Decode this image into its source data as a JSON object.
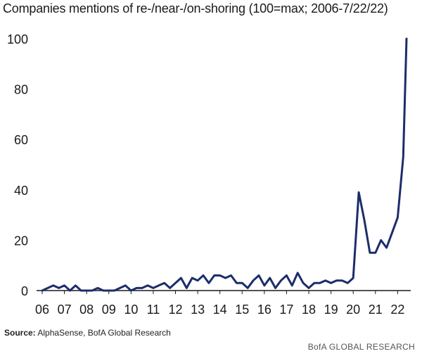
{
  "chart_data": {
    "type": "line",
    "title": "Companies mentions of re-/near-/on-shoring (100=max; 2006-7/22/22)",
    "xlabel": "",
    "ylabel": "",
    "ylim": [
      0,
      100
    ],
    "yticks": [
      0,
      20,
      40,
      60,
      80,
      100
    ],
    "categories": [
      "06",
      "07",
      "08",
      "09",
      "10",
      "11",
      "12",
      "13",
      "14",
      "15",
      "16",
      "17",
      "18",
      "19",
      "20",
      "21",
      "22"
    ],
    "grid": false,
    "line_color": "#1c2d6b",
    "series": [
      {
        "values": [
          [
            2006.0,
            0
          ],
          [
            2006.25,
            1
          ],
          [
            2006.5,
            2
          ],
          [
            2006.75,
            1
          ],
          [
            2007.0,
            2
          ],
          [
            2007.25,
            0
          ],
          [
            2007.5,
            2
          ],
          [
            2007.75,
            0
          ],
          [
            2008.0,
            0
          ],
          [
            2008.25,
            0
          ],
          [
            2008.5,
            1
          ],
          [
            2008.75,
            0
          ],
          [
            2009.0,
            0
          ],
          [
            2009.25,
            0
          ],
          [
            2009.5,
            1
          ],
          [
            2009.75,
            2
          ],
          [
            2010.0,
            0
          ],
          [
            2010.25,
            1
          ],
          [
            2010.5,
            1
          ],
          [
            2010.75,
            2
          ],
          [
            2011.0,
            1
          ],
          [
            2011.25,
            2
          ],
          [
            2011.5,
            3
          ],
          [
            2011.75,
            1
          ],
          [
            2012.0,
            3
          ],
          [
            2012.25,
            5
          ],
          [
            2012.5,
            1
          ],
          [
            2012.75,
            5
          ],
          [
            2013.0,
            4
          ],
          [
            2013.25,
            6
          ],
          [
            2013.5,
            3
          ],
          [
            2013.75,
            6
          ],
          [
            2014.0,
            6
          ],
          [
            2014.25,
            5
          ],
          [
            2014.5,
            6
          ],
          [
            2014.75,
            3
          ],
          [
            2015.0,
            3
          ],
          [
            2015.25,
            1
          ],
          [
            2015.5,
            4
          ],
          [
            2015.75,
            6
          ],
          [
            2016.0,
            2
          ],
          [
            2016.25,
            5
          ],
          [
            2016.5,
            1
          ],
          [
            2016.75,
            4
          ],
          [
            2017.0,
            6
          ],
          [
            2017.25,
            2
          ],
          [
            2017.5,
            7
          ],
          [
            2017.75,
            3
          ],
          [
            2018.0,
            1
          ],
          [
            2018.25,
            3
          ],
          [
            2018.5,
            3
          ],
          [
            2018.75,
            4
          ],
          [
            2019.0,
            3
          ],
          [
            2019.25,
            4
          ],
          [
            2019.5,
            4
          ],
          [
            2019.75,
            3
          ],
          [
            2020.0,
            5
          ],
          [
            2020.25,
            39
          ],
          [
            2020.5,
            28
          ],
          [
            2020.75,
            15
          ],
          [
            2021.0,
            15
          ],
          [
            2021.25,
            20
          ],
          [
            2021.5,
            17
          ],
          [
            2021.75,
            23
          ],
          [
            2022.0,
            29
          ],
          [
            2022.25,
            53
          ],
          [
            2022.4,
            100
          ]
        ]
      }
    ]
  },
  "footer": {
    "source_label": "Source:",
    "source_text": "AlphaSense, BofA Global Research",
    "credit": "BofA GLOBAL RESEARCH"
  }
}
